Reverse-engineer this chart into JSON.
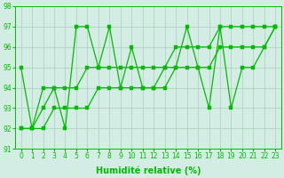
{
  "x": [
    0,
    1,
    2,
    3,
    4,
    5,
    6,
    7,
    8,
    9,
    10,
    11,
    12,
    13,
    14,
    15,
    16,
    17,
    18,
    19,
    20,
    21,
    22,
    23
  ],
  "y_zigzag": [
    95,
    92,
    94,
    94,
    92,
    97,
    97,
    95,
    97,
    94,
    96,
    94,
    94,
    94,
    95,
    97,
    95,
    93,
    97,
    93,
    95,
    95,
    96,
    97
  ],
  "y_trend1": [
    92,
    92,
    93,
    94,
    94,
    94,
    95,
    95,
    95,
    95,
    95,
    95,
    95,
    95,
    96,
    96,
    96,
    96,
    97,
    97,
    97,
    97,
    97,
    97
  ],
  "y_trend2": [
    92,
    92,
    92,
    93,
    93,
    93,
    93,
    94,
    94,
    94,
    94,
    94,
    94,
    95,
    95,
    95,
    95,
    95,
    96,
    96,
    96,
    96,
    96,
    97
  ],
  "line_color": "#00bb00",
  "bg_color": "#d4ede4",
  "grid_color": "#aaccbb",
  "xlabel": "Humidité relative (%)",
  "ylim": [
    91,
    98
  ],
  "xlim": [
    -0.5,
    23.5
  ],
  "yticks": [
    91,
    92,
    93,
    94,
    95,
    96,
    97,
    98
  ],
  "xticks": [
    0,
    1,
    2,
    3,
    4,
    5,
    6,
    7,
    8,
    9,
    10,
    11,
    12,
    13,
    14,
    15,
    16,
    17,
    18,
    19,
    20,
    21,
    22,
    23
  ],
  "xlabel_fontsize": 7,
  "tick_fontsize": 5.5,
  "line_width": 0.9,
  "marker_size": 2.2
}
